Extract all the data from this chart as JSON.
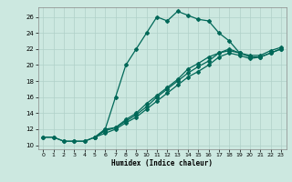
{
  "title": "",
  "xlabel": "Humidex (Indice chaleur)",
  "ylabel": "",
  "bg_color": "#cce8e0",
  "grid_color": "#b0d0c8",
  "line_color": "#006858",
  "xlim": [
    -0.5,
    23.5
  ],
  "ylim": [
    9.5,
    27.2
  ],
  "xticks": [
    0,
    1,
    2,
    3,
    4,
    5,
    6,
    7,
    8,
    9,
    10,
    11,
    12,
    13,
    14,
    15,
    16,
    17,
    18,
    19,
    20,
    21,
    22,
    23
  ],
  "yticks": [
    10,
    12,
    14,
    16,
    18,
    20,
    22,
    24,
    26
  ],
  "line1_x": [
    0,
    1,
    2,
    3,
    4,
    5,
    6,
    7,
    8,
    9,
    10,
    11,
    12,
    13,
    14,
    15,
    16,
    17,
    18,
    19
  ],
  "line1_y": [
    11,
    11,
    10.5,
    10.5,
    10.5,
    11,
    12,
    16,
    20,
    22,
    24,
    26,
    25.5,
    26.7,
    26.2,
    25.7,
    25.5,
    24,
    23,
    21.5
  ],
  "line2_x": [
    0,
    1,
    2,
    3,
    4,
    5,
    6,
    7,
    8,
    9,
    10,
    11,
    12,
    13,
    14,
    15,
    16,
    17,
    18,
    19,
    20,
    21,
    22,
    23
  ],
  "line2_y": [
    11,
    11,
    10.5,
    10.5,
    10.5,
    11,
    12,
    12.2,
    13.0,
    13.8,
    14.8,
    16.0,
    17.0,
    18.0,
    19.0,
    19.8,
    20.5,
    21.5,
    21.8,
    21.5,
    21.0,
    21.0,
    21.5,
    22.0
  ],
  "line3_x": [
    5,
    6,
    7,
    8,
    9,
    10,
    11,
    12,
    13,
    14,
    15,
    16,
    17,
    18,
    19,
    20,
    21,
    22,
    23
  ],
  "line3_y": [
    11,
    11.5,
    12.0,
    12.8,
    13.5,
    14.5,
    15.5,
    16.5,
    17.5,
    18.5,
    19.2,
    20.0,
    21.0,
    21.5,
    21.2,
    20.8,
    21.0,
    21.5,
    22.0
  ],
  "line4_x": [
    5,
    6,
    7,
    8,
    9,
    10,
    11,
    12,
    13,
    14,
    15,
    16,
    17,
    18,
    19,
    20,
    21,
    22,
    23
  ],
  "line4_y": [
    11,
    11.8,
    12.2,
    13.2,
    14.0,
    15.2,
    16.2,
    17.2,
    18.2,
    19.5,
    20.2,
    21.0,
    21.5,
    22.0,
    21.5,
    21.2,
    21.2,
    21.8,
    22.2
  ]
}
